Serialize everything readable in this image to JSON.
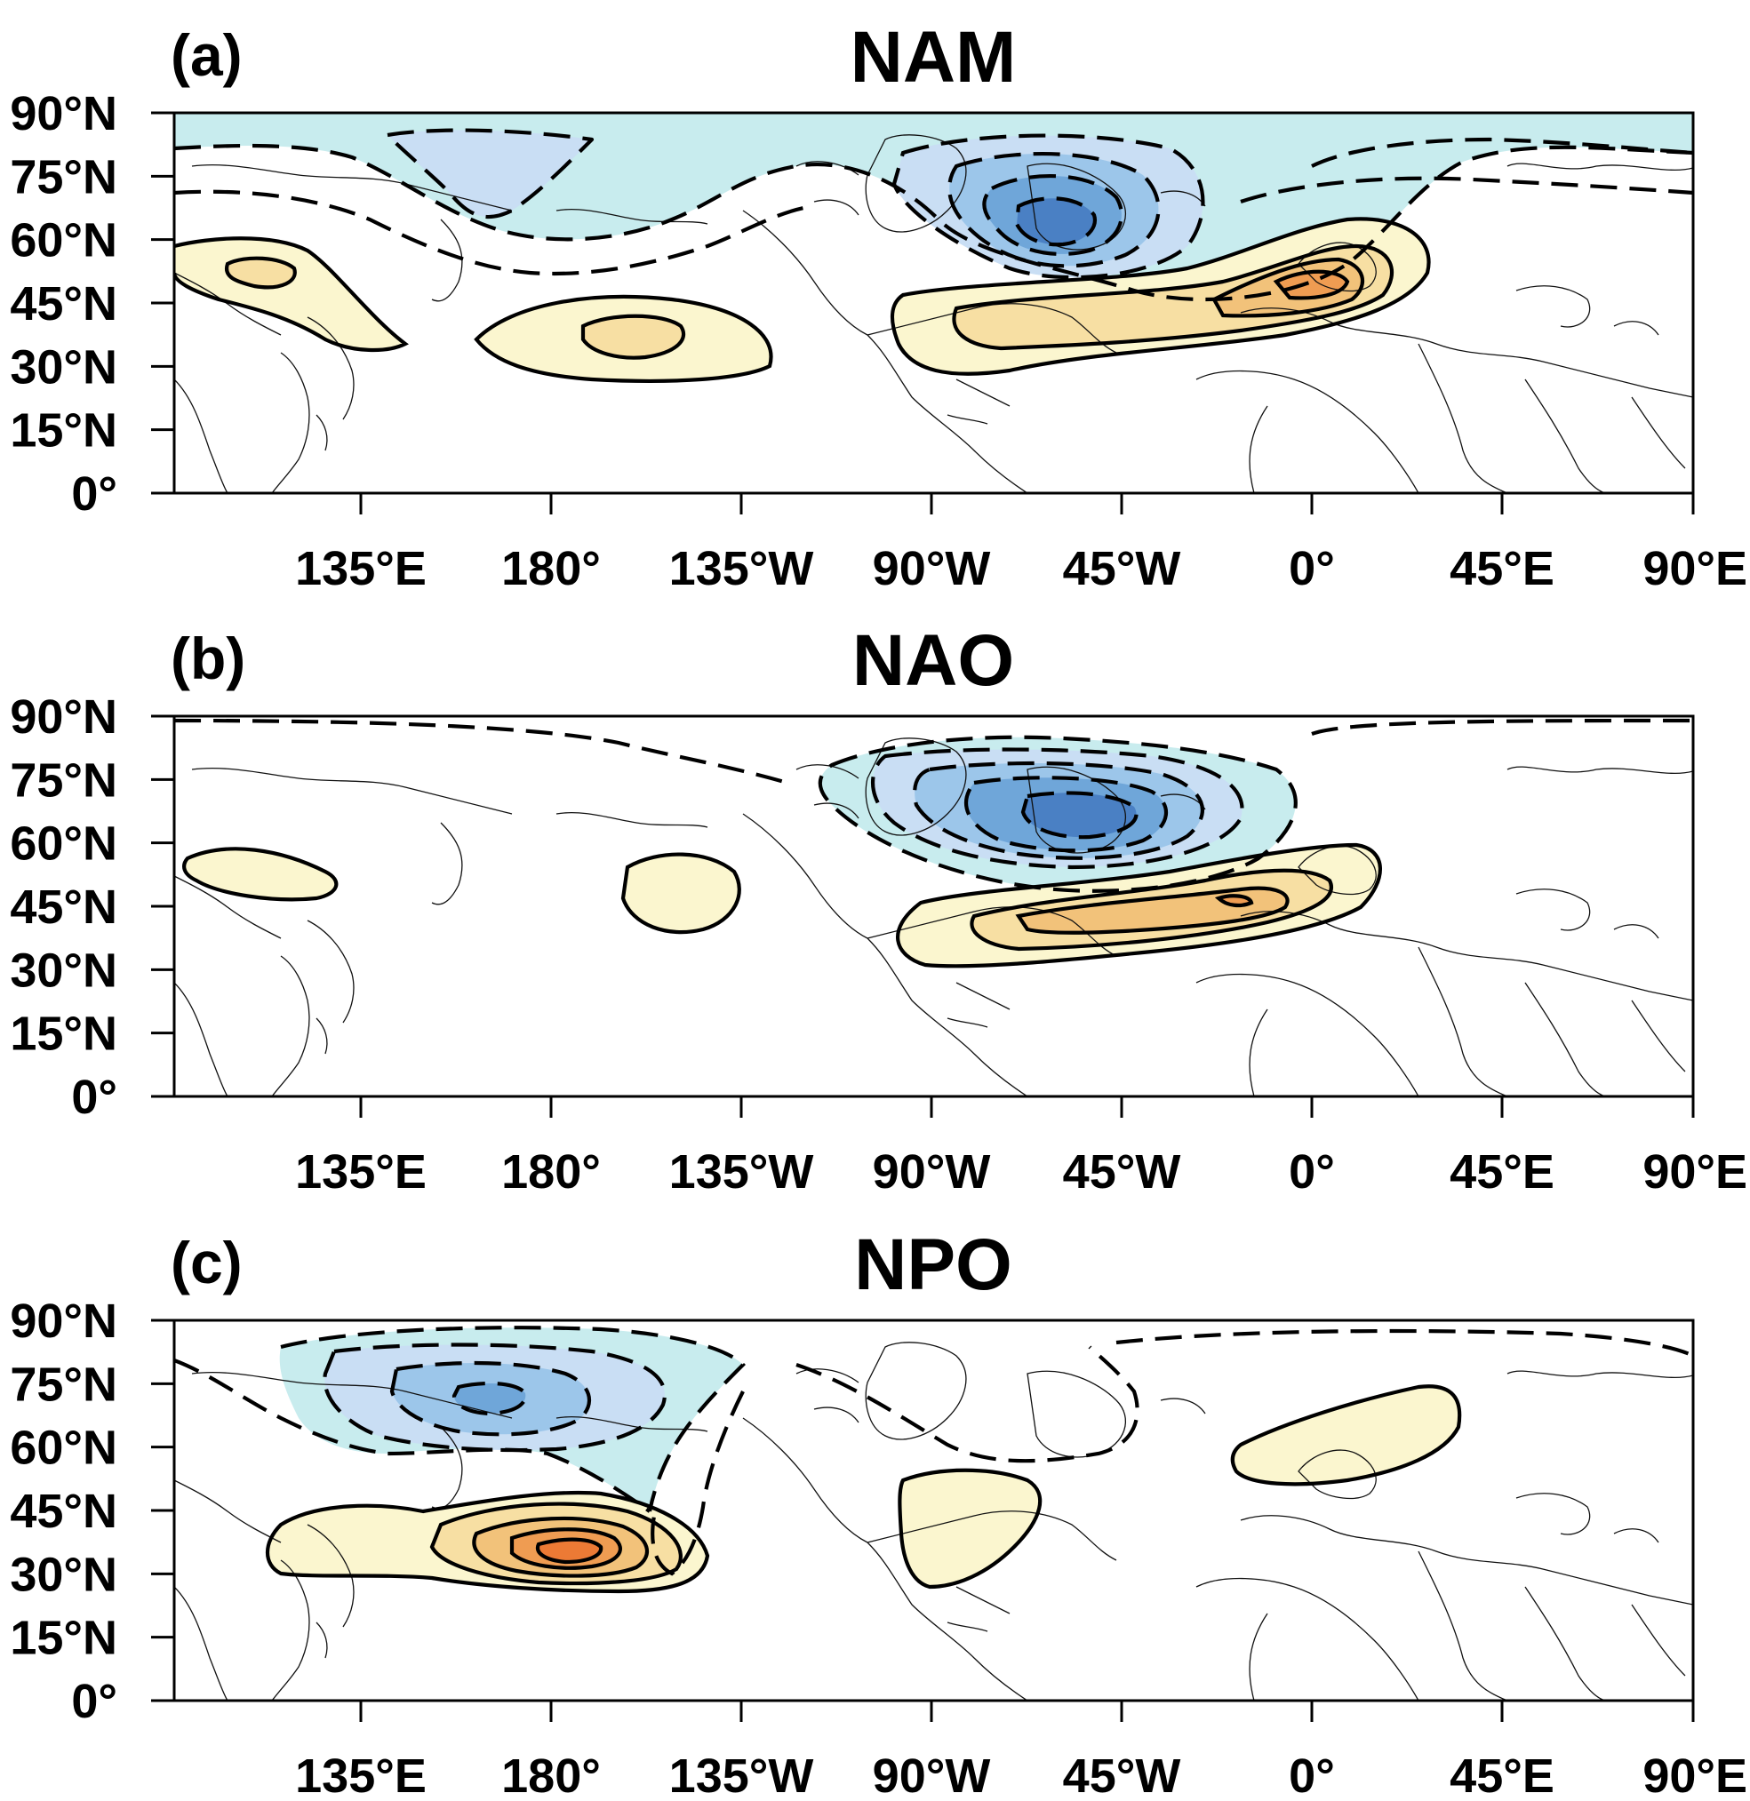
{
  "colors": {
    "neg1": "#c8ecee",
    "neg2": "#c9def4",
    "neg3": "#9cc6ea",
    "neg4": "#6fa6d9",
    "neg5": "#4a80c4",
    "pos1": "#fbf6cf",
    "pos2": "#f7dfa3",
    "pos3": "#f2c27a",
    "pos4": "#ef9c52",
    "pos5": "#ec7a35"
  },
  "lon_ticks": [
    "135°E",
    "180°",
    "135°W",
    "90°W",
    "45°W",
    "0°",
    "45°E",
    "90°E"
  ],
  "lat_ticks": [
    "90°N",
    "75°N",
    "60°N",
    "45°N",
    "30°N",
    "15°N",
    "0°"
  ],
  "panels": [
    {
      "id": "a",
      "letter": "(a)",
      "title": "NAM"
    },
    {
      "id": "b",
      "letter": "(b)",
      "title": "NAO"
    },
    {
      "id": "c",
      "letter": "(c)",
      "title": "NPO"
    }
  ]
}
